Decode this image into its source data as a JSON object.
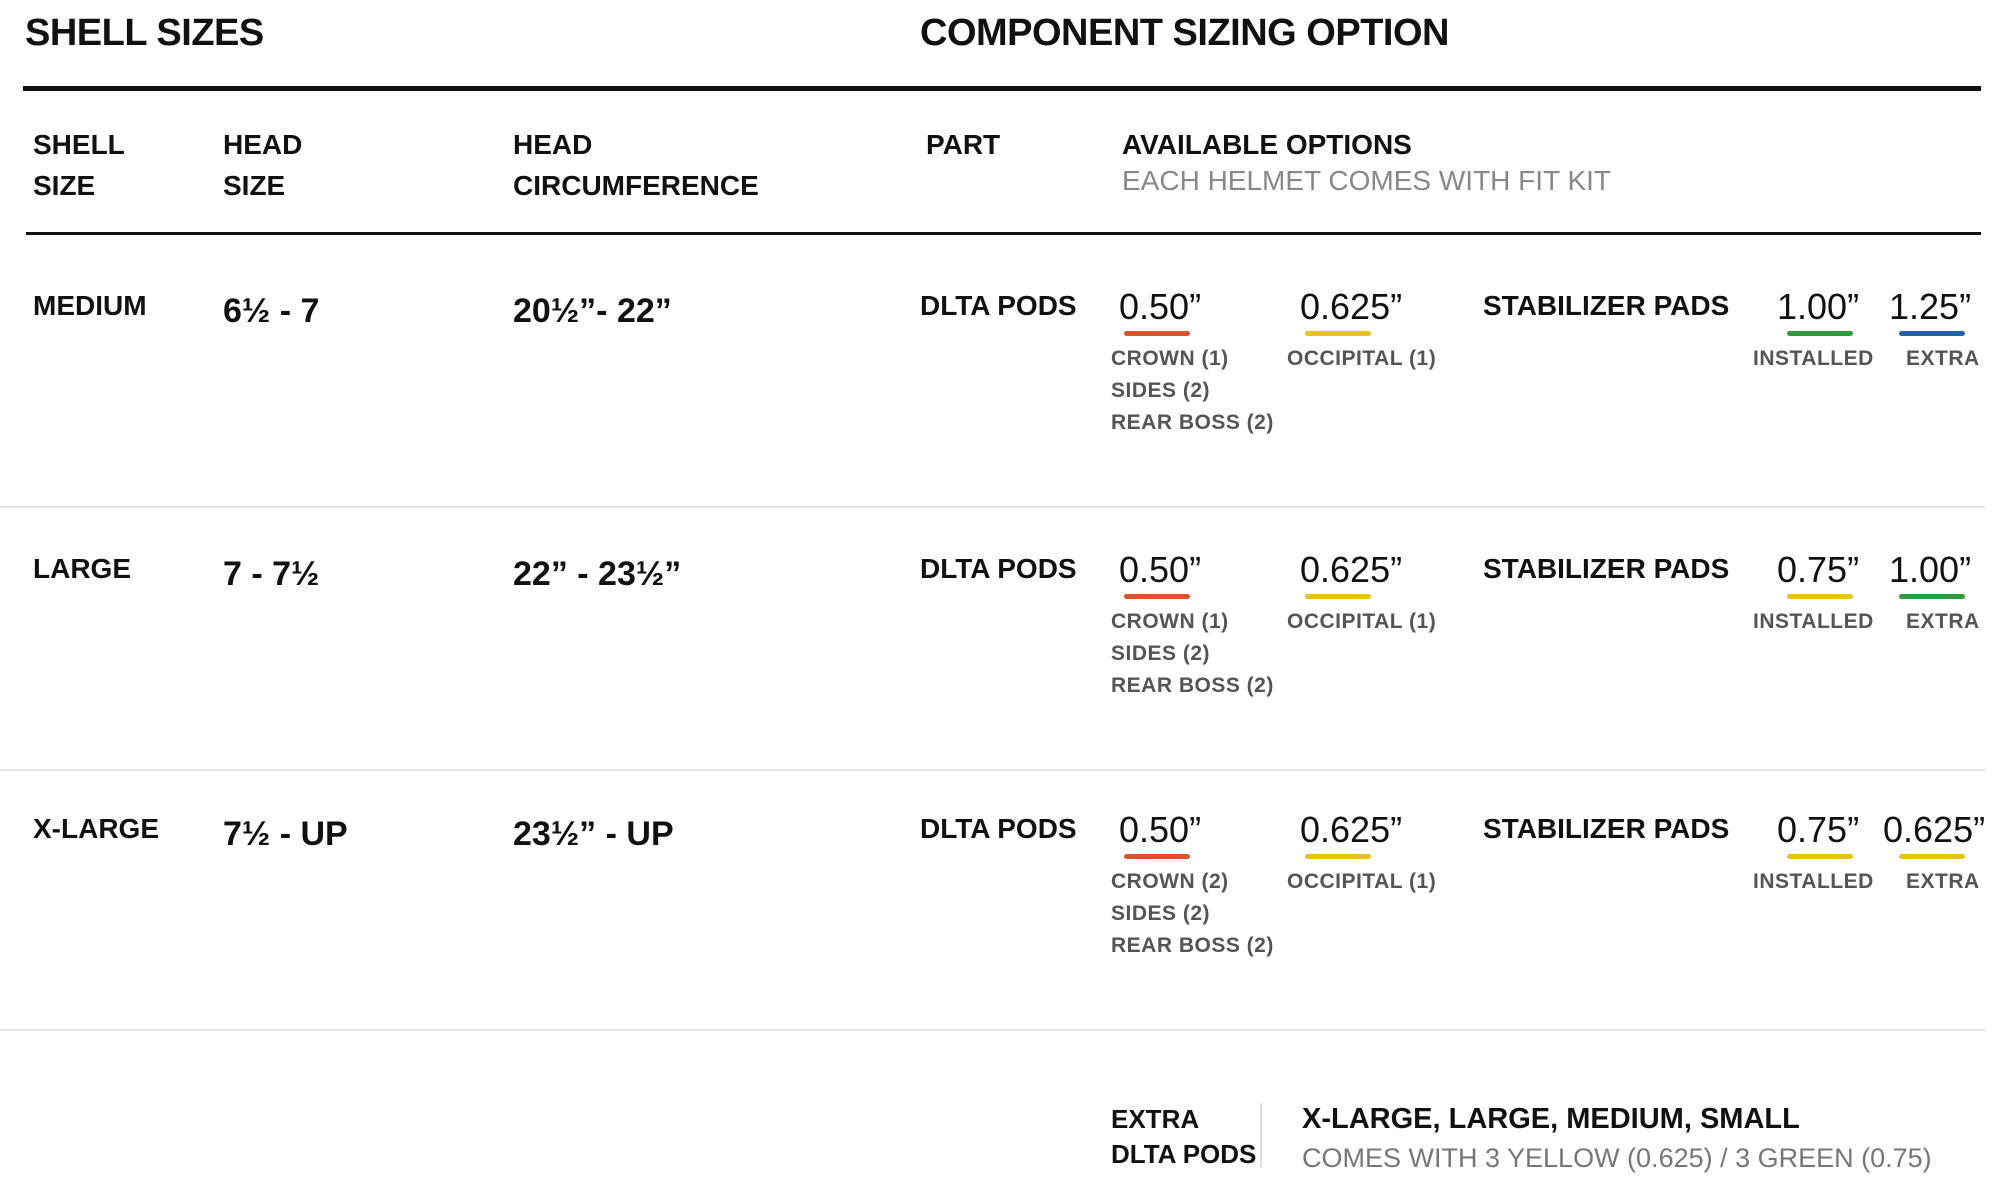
{
  "header": {
    "shell_sizes_title": "SHELL SIZES",
    "component_title": "COMPONENT SIZING OPTION"
  },
  "columns": {
    "shell_size": [
      "SHELL",
      "SIZE"
    ],
    "head_size": [
      "HEAD",
      "SIZE"
    ],
    "head_circumference": [
      "HEAD",
      "CIRCUMFERENCE"
    ],
    "part": "PART",
    "available_options": "AVAILABLE OPTIONS",
    "available_options_note": "EACH HELMET COMES WITH FIT KIT"
  },
  "colors": {
    "orange": "#d9542b",
    "yellow": "#e8c21a",
    "green": "#2f9a3e",
    "blue": "#1f62a8"
  },
  "rows": [
    {
      "shell_size": "MEDIUM",
      "head_size": "6½ - 7",
      "head_circumference": "20½”- 22”",
      "part": "DLTA PODS",
      "pods": [
        {
          "value": "0.50”",
          "color": "#d9542b",
          "locations": [
            "CROWN (1)",
            "SIDES (2)",
            "REAR BOSS (2)"
          ]
        },
        {
          "value": "0.625”",
          "color": "#e8c21a",
          "locations": [
            "OCCIPITAL (1)"
          ]
        }
      ],
      "stabilizer_label": "STABILIZER PADS",
      "stabilizer": [
        {
          "value": "1.00”",
          "color": "#2f9a3e",
          "label": "INSTALLED"
        },
        {
          "value": "1.25”",
          "color": "#1f62a8",
          "label": "EXTRA"
        }
      ]
    },
    {
      "shell_size": "LARGE",
      "head_size": "7 - 7½",
      "head_circumference": "22” - 23½”",
      "part": "DLTA PODS",
      "pods": [
        {
          "value": "0.50”",
          "color": "#d9542b",
          "locations": [
            "CROWN (1)",
            "SIDES (2)",
            "REAR BOSS (2)"
          ]
        },
        {
          "value": "0.625”",
          "color": "#e8c21a",
          "locations": [
            "OCCIPITAL (1)"
          ]
        }
      ],
      "stabilizer_label": "STABILIZER PADS",
      "stabilizer": [
        {
          "value": "0.75”",
          "color": "#e8c21a",
          "label": "INSTALLED"
        },
        {
          "value": "1.00”",
          "color": "#2f9a3e",
          "label": "EXTRA"
        }
      ]
    },
    {
      "shell_size": "X-LARGE",
      "head_size": "7½ - UP",
      "head_circumference": "23½” - UP",
      "part": "DLTA PODS",
      "pods": [
        {
          "value": "0.50”",
          "color": "#d9542b",
          "locations": [
            "CROWN (2)",
            "SIDES (2)",
            "REAR BOSS (2)"
          ]
        },
        {
          "value": "0.625”",
          "color": "#e8c21a",
          "locations": [
            "OCCIPITAL (1)"
          ]
        }
      ],
      "stabilizer_label": "STABILIZER PADS",
      "stabilizer": [
        {
          "value": "0.75”",
          "color": "#e8c21a",
          "label": "INSTALLED"
        },
        {
          "value": "0.625”",
          "color": "#e8c21a",
          "label": "EXTRA"
        }
      ]
    }
  ],
  "footer": {
    "label": [
      "EXTRA",
      "DLTA PODS"
    ],
    "sizes": "X-LARGE, LARGE, MEDIUM, SMALL",
    "note": "COMES WITH 3 YELLOW (0.625) / 3 GREEN (0.75)"
  }
}
